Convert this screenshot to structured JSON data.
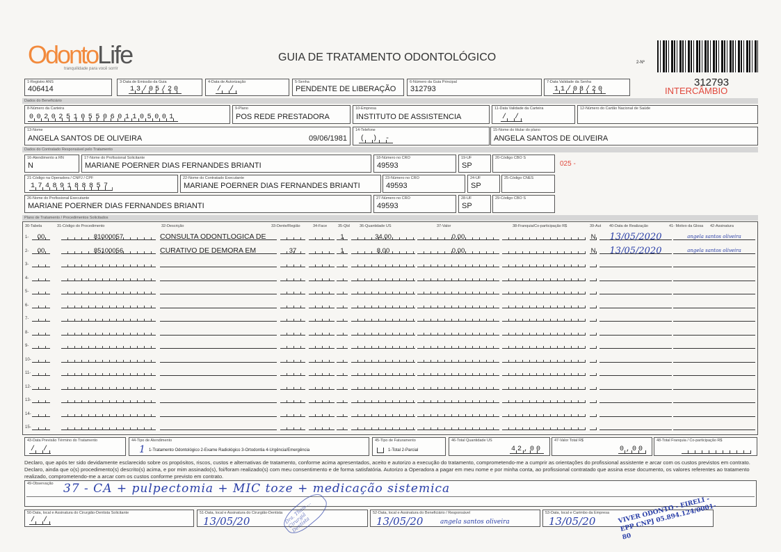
{
  "header": {
    "logo_text_a": "Odonto",
    "logo_text_b": "Life",
    "logo_tagline": "tranquilidade para você sorrir",
    "title": "GUIA DE TRATAMENTO ODONTOLÓGICO",
    "guide_no_label": "2-Nº",
    "guide_number": "312793",
    "stamp": "INTERCÂMBIO",
    "cbo_note": "025 -"
  },
  "fields": {
    "f1": {
      "label": "1-Registro ANS",
      "value": "406414"
    },
    "f3": {
      "label": "3-Data de Emissão da Guia",
      "value": "13/05/20"
    },
    "f4": {
      "label": "4-Data de Autorização",
      "value": "  /  /  "
    },
    "f5": {
      "label": "5-Senha",
      "value": "PENDENTE DE LIBERAÇÃO"
    },
    "f6": {
      "label": "6-Número da Guia Principal",
      "value": "312793"
    },
    "f7": {
      "label": "7-Data Validade da Senha",
      "value": "11/08/20"
    },
    "f8": {
      "label": "8-Número da Carteira",
      "value": "00202510550601105001"
    },
    "f9": {
      "label": "9-Plano",
      "value": "POS REDE PRESTADORA"
    },
    "f10": {
      "label": "10-Empresa",
      "value": "INSTITUTO DE ASSISTENCIA"
    },
    "f11": {
      "label": "11-Data Validade da Carteira",
      "value": "  /  /  "
    },
    "f12": {
      "label": "12-Número do Cartão Nacional de Saúde",
      "value": ""
    },
    "f13": {
      "label": "13-Nome",
      "value": "ANGELA SANTOS DE OLIVEIRA",
      "birth": "09/06/1981"
    },
    "f14": {
      "label": "14-Telefone",
      "value": "(  )     -    "
    },
    "f15": {
      "label": "15-Nome do titular do plano",
      "value": "ANGELA SANTOS DE OLIVEIRA"
    },
    "f16": {
      "label": "16-Atendimento a RN",
      "value": "N"
    },
    "f17": {
      "label": "17-Nome do Profissional Solicitante",
      "value": "MARIANE POERNER DIAS FERNANDES BRIANTI"
    },
    "f18": {
      "label": "18-Número no CRO",
      "value": "49593"
    },
    "f19": {
      "label": "19-UF",
      "value": "SP"
    },
    "f20": {
      "label": "20-Código CBO S",
      "value": ""
    },
    "f21": {
      "label": "21-Código na Operadora / CNPJ / CPF",
      "value": "17489188857    "
    },
    "f22": {
      "label": "22-Nome do Contratado Executante",
      "value": "MARIANE POERNER DIAS FERNANDES BRIANTI"
    },
    "f23": {
      "label": "23-Número no CRO",
      "value": "49593"
    },
    "f24": {
      "label": "24-UF",
      "value": "SP"
    },
    "f25": {
      "label": "25-Código CNES",
      "value": ""
    },
    "f26": {
      "label": "26-Nome do Profissional Executante",
      "value": "MARIANE POERNER DIAS FERNANDES BRIANTI"
    },
    "f27": {
      "label": "27-Número no CRO",
      "value": "49593"
    },
    "f28": {
      "label": "28-UF",
      "value": "SP"
    },
    "f29": {
      "label": "29-Código CBO S",
      "value": ""
    }
  },
  "sections": {
    "beneficiario": "Dados do Beneficiário",
    "contratado": "Dados do Contratado Responsável pelo Tratamento",
    "plano": "Plano de Tratamento / Procedimentos Solicitados"
  },
  "table": {
    "columns": [
      "30-Tabela",
      "31-Código do Procedimento",
      "32-Descrição",
      "33-Dente/Região",
      "34-Face",
      "35-Qtd",
      "36-Quantidade US",
      "37-Valor",
      "38-Franquia/Co-participação R$",
      "39-Aut",
      "40-Data de Realização",
      "41- Motivo da Glosa",
      "42-Assinatura"
    ],
    "rows": [
      {
        "n": "1-",
        "tabela": "00",
        "codigo": "81000057",
        "descricao": "CONSULTA ODONTLOGICA DE",
        "dente": "",
        "face": "",
        "qtd": "1",
        "us": "34,00",
        "valor": "0,00",
        "franquia": "",
        "aut": "N",
        "data": "13/05/2020",
        "assinatura": "angela santos oliveira"
      },
      {
        "n": "2-",
        "tabela": "00",
        "codigo": "85100056",
        "descricao": "CURATIVO DE DEMORA EM",
        "dente": "37",
        "face": "",
        "qtd": "1",
        "us": "8,00",
        "valor": "0,00",
        "franquia": "",
        "aut": "N",
        "data": "13/05/2020",
        "assinatura": "angela santos oliveira"
      },
      {
        "n": "3-"
      },
      {
        "n": "4-"
      },
      {
        "n": "5-"
      },
      {
        "n": "6-"
      },
      {
        "n": "7-"
      },
      {
        "n": "8-"
      },
      {
        "n": "9-"
      },
      {
        "n": "10-"
      },
      {
        "n": "11-"
      },
      {
        "n": "12-"
      },
      {
        "n": "13-"
      },
      {
        "n": "14-"
      },
      {
        "n": "15-"
      }
    ]
  },
  "totals": {
    "f43": {
      "label": "43-Data Previsão Término do Tratamento",
      "value": "  /  /  "
    },
    "f44": {
      "label": "44-Tipo de Atendimento",
      "value": "1",
      "options": "1-Tratamento Odontológico  2-Exame Radiológico  3-Ortodontia  4-Urgência/Emergência"
    },
    "f45": {
      "label": "45-Tipo de Faturamento",
      "value": "",
      "options": "1-Total  2-Parcial"
    },
    "f46": {
      "label": "46-Total Quantidade US",
      "value": "42,00"
    },
    "f47": {
      "label": "47-Valor Total R$",
      "value": "0,00"
    },
    "f48": {
      "label": "48-Total Franquia / Co-participação R$",
      "value": ""
    }
  },
  "declaration": "Declaro, que após ter sido devidamente esclarecido sobre os propósitos, riscos, custos e alternativas de tratamento, conforme acima apresentados, aceito e autorizo a execução do tratamento, comprometendo-me a cumprir as orientações do profissional assistente e arcar com os custos previstos em contrato. Declaro, ainda que o(s) procedimento(s) descrito(s) acima, e por mim assinado(s), foi/foram realizado(s) com meu consentimento e de forma satisfatória. Autorizo a Operadora a pagar em meu nome e por minha conta, ao profissional contratado que assina esse documento, os valores referentes ao tratamento realizado, comprometendo-me a arcar com os custos conforme previsto em contrato.",
  "observation": {
    "label": "49-Observação",
    "value": "37 - CA + pulpectomia + MIC toze + medicação sistemica"
  },
  "signatures": {
    "f50": {
      "label": "50-Data, local e Assinatura do Cirurgião-Dentista Solicitante",
      "date": "  /  /  "
    },
    "f51": {
      "label": "51-Data, local e Assinatura do Cirurgião-Dentista",
      "date": "13/05/20",
      "stamp": "Dra. Thaís ... Cirurgiã Dentista"
    },
    "f52": {
      "label": "52-Data, local e Assinatura do Beneficiário / Responsável",
      "date": "13/05/20",
      "signature": "angela santos oliveira"
    },
    "f53": {
      "label": "53-Data, local e Carimbo da Empresa",
      "date": "13/05/20",
      "stamp": "VIVER ODONTO - EIRELI - EPP  CNPJ 05.894.124/0001-80"
    }
  },
  "colors": {
    "logo": "#f28a3c",
    "red": "#e0483c",
    "ink": "#2a3fa8"
  }
}
